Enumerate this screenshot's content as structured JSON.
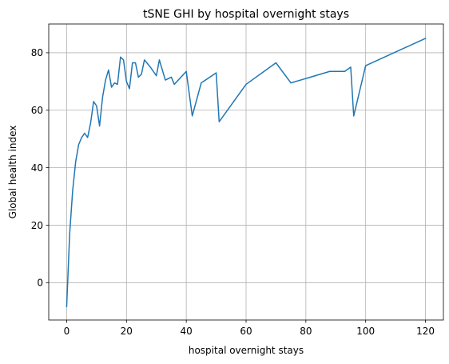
{
  "chart_data": {
    "type": "line",
    "title": "tSNE GHI by hospital overnight stays",
    "xlabel": "hospital overnight stays",
    "ylabel": "Global health index",
    "xlim": [
      -6,
      126
    ],
    "ylim": [
      -13,
      90
    ],
    "xticks": [
      0,
      20,
      40,
      60,
      80,
      100,
      120
    ],
    "yticks": [
      0,
      20,
      40,
      60,
      80
    ],
    "grid": true,
    "line_color": "#1f77b4",
    "series": [
      {
        "x": [
          0,
          1,
          2,
          3,
          4,
          5,
          6,
          7,
          8,
          9,
          10,
          11,
          12,
          13,
          14,
          15,
          16,
          17,
          18,
          19,
          20,
          21,
          22,
          23,
          24,
          25,
          26,
          28,
          30,
          31,
          33,
          35,
          36,
          40,
          42,
          45,
          50,
          51,
          60,
          70,
          75,
          88,
          93,
          95,
          96,
          100,
          120
        ],
        "y": [
          -8.3,
          17,
          32,
          42,
          48,
          50.5,
          52,
          50.5,
          55.5,
          63,
          61.5,
          54.5,
          64.5,
          70.5,
          74,
          68,
          69.5,
          69,
          78.5,
          77.5,
          70,
          67.5,
          76.5,
          76.5,
          71.5,
          72.5,
          77.5,
          75,
          72,
          77.5,
          70.5,
          71.5,
          69,
          73.5,
          58,
          69.5,
          73,
          56,
          69,
          76.5,
          69.5,
          73.5,
          73.5,
          75,
          58,
          75.5,
          85
        ]
      }
    ]
  }
}
